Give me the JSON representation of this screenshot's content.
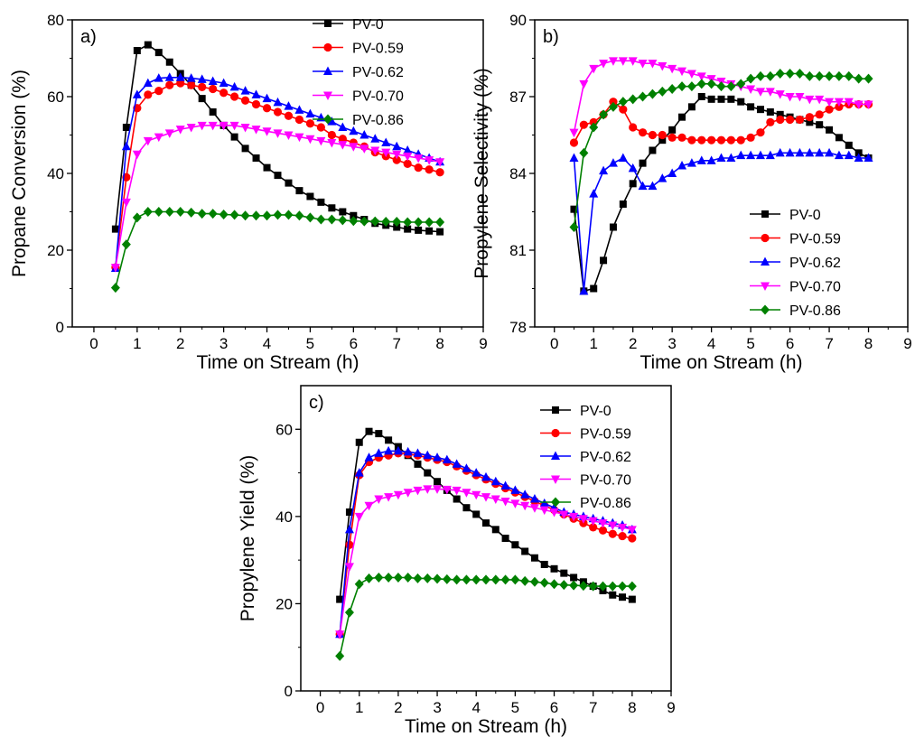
{
  "colors": {
    "PV-0": "#000000",
    "PV-0.59": "#ff0000",
    "PV-0.62": "#0000ff",
    "PV-0.70": "#ff00ff",
    "PV-0.86": "#008000"
  },
  "chart_data": [
    {
      "type": "line",
      "panel_label": "a)",
      "xlabel": "Time on Stream (h)",
      "ylabel": "Propane Conversion (%)",
      "xlim": [
        -0.5,
        9
      ],
      "ylim": [
        0,
        80
      ],
      "xticks": [
        0,
        1,
        2,
        3,
        4,
        5,
        6,
        7,
        8,
        9
      ],
      "yticks": [
        0,
        20,
        40,
        60,
        80
      ],
      "legend_position": "top-right",
      "x": [
        0.5,
        0.75,
        1.0,
        1.25,
        1.5,
        1.75,
        2.0,
        2.25,
        2.5,
        2.75,
        3.0,
        3.25,
        3.5,
        3.75,
        4.0,
        4.25,
        4.5,
        4.75,
        5.0,
        5.25,
        5.5,
        5.75,
        6.0,
        6.25,
        6.5,
        6.75,
        7.0,
        7.25,
        7.5,
        7.75,
        8.0
      ],
      "series": [
        {
          "name": "PV-0",
          "marker": "square",
          "values": [
            25.5,
            52,
            72,
            73.5,
            71.5,
            69,
            66,
            63,
            59.5,
            56,
            52.5,
            49.5,
            46.5,
            44,
            41.5,
            39.5,
            37.5,
            35.5,
            34,
            32.5,
            31,
            30,
            29,
            28,
            27,
            26.5,
            26,
            25.5,
            25.2,
            25,
            24.8
          ]
        },
        {
          "name": "PV-0.59",
          "marker": "circle",
          "values": [
            15.5,
            39,
            57,
            60.5,
            61.5,
            63,
            63.5,
            63,
            62.5,
            62,
            61,
            60,
            59,
            58,
            57,
            56,
            55,
            54,
            53,
            52,
            50,
            49,
            48,
            47,
            45.5,
            44.5,
            43.5,
            42.5,
            41.5,
            41,
            40.3
          ]
        },
        {
          "name": "PV-0.62",
          "marker": "triangle-up",
          "values": [
            15.3,
            47,
            60.5,
            63.5,
            64.8,
            65,
            65,
            64.8,
            64.5,
            64,
            63.5,
            62.5,
            61.5,
            60.5,
            59.5,
            58.5,
            57.5,
            56.5,
            55.5,
            54.5,
            53.5,
            52,
            51,
            50,
            49,
            48,
            47,
            46,
            45,
            44,
            43
          ]
        },
        {
          "name": "PV-0.70",
          "marker": "triangle-down",
          "values": [
            15.5,
            32.5,
            45,
            48.5,
            49.5,
            50.5,
            51.5,
            52,
            52.5,
            52.5,
            52.5,
            52.5,
            52,
            51.5,
            51,
            50.5,
            50,
            49.5,
            49,
            48.5,
            48,
            47.5,
            47,
            46.5,
            46,
            45.5,
            45,
            44.5,
            44,
            43.5,
            43
          ]
        },
        {
          "name": "PV-0.86",
          "marker": "diamond",
          "values": [
            10.2,
            21.5,
            28.5,
            30,
            30,
            30,
            30,
            29.8,
            29.5,
            29.5,
            29.3,
            29.2,
            29,
            29,
            29,
            29.2,
            29.2,
            29,
            28.5,
            28,
            28,
            27.8,
            27.6,
            27.5,
            27.5,
            27.4,
            27.4,
            27.3,
            27.3,
            27.3,
            27.3
          ]
        }
      ]
    },
    {
      "type": "line",
      "panel_label": "b)",
      "xlabel": "Time on Stream (h)",
      "ylabel": "Propylene Selectivity (%)",
      "xlim": [
        -0.5,
        9
      ],
      "ylim": [
        78,
        90
      ],
      "xticks": [
        0,
        1,
        2,
        3,
        4,
        5,
        6,
        7,
        8,
        9
      ],
      "yticks": [
        78,
        81,
        84,
        87,
        90
      ],
      "legend_position": "bottom-right",
      "x": [
        0.5,
        0.75,
        1.0,
        1.25,
        1.5,
        1.75,
        2.0,
        2.25,
        2.5,
        2.75,
        3.0,
        3.25,
        3.5,
        3.75,
        4.0,
        4.25,
        4.5,
        4.75,
        5.0,
        5.25,
        5.5,
        5.75,
        6.0,
        6.25,
        6.5,
        6.75,
        7.0,
        7.25,
        7.5,
        7.75,
        8.0
      ],
      "series": [
        {
          "name": "PV-0",
          "marker": "square",
          "values": [
            82.6,
            79.4,
            79.5,
            80.6,
            81.9,
            82.8,
            83.6,
            84.4,
            84.9,
            85.3,
            85.7,
            86.2,
            86.6,
            87.0,
            86.9,
            86.9,
            86.9,
            86.8,
            86.6,
            86.5,
            86.4,
            86.3,
            86.2,
            86.1,
            86.0,
            85.9,
            85.7,
            85.4,
            85.1,
            84.8,
            84.6
          ]
        },
        {
          "name": "PV-0.59",
          "marker": "circle",
          "values": [
            85.2,
            85.9,
            86.0,
            86.3,
            86.8,
            86.5,
            85.8,
            85.6,
            85.5,
            85.5,
            85.4,
            85.4,
            85.3,
            85.3,
            85.3,
            85.3,
            85.3,
            85.3,
            85.4,
            85.6,
            86.0,
            86.1,
            86.1,
            86.1,
            86.2,
            86.3,
            86.5,
            86.6,
            86.7,
            86.7,
            86.7
          ]
        },
        {
          "name": "PV-0.62",
          "marker": "triangle-up",
          "values": [
            84.6,
            79.4,
            83.2,
            84.1,
            84.4,
            84.6,
            84.2,
            83.5,
            83.5,
            83.8,
            84.0,
            84.3,
            84.4,
            84.5,
            84.5,
            84.6,
            84.6,
            84.7,
            84.7,
            84.7,
            84.7,
            84.8,
            84.8,
            84.8,
            84.8,
            84.8,
            84.8,
            84.7,
            84.7,
            84.6,
            84.6
          ]
        },
        {
          "name": "PV-0.70",
          "marker": "triangle-down",
          "values": [
            85.6,
            87.5,
            88.1,
            88.3,
            88.4,
            88.4,
            88.4,
            88.3,
            88.3,
            88.2,
            88.1,
            88.0,
            87.9,
            87.8,
            87.7,
            87.6,
            87.5,
            87.4,
            87.3,
            87.2,
            87.2,
            87.1,
            87.0,
            87.0,
            86.9,
            86.9,
            86.8,
            86.8,
            86.8,
            86.7,
            86.7
          ]
        },
        {
          "name": "PV-0.86",
          "marker": "diamond",
          "values": [
            81.9,
            84.8,
            85.8,
            86.3,
            86.6,
            86.8,
            86.9,
            87.0,
            87.1,
            87.2,
            87.3,
            87.4,
            87.4,
            87.5,
            87.5,
            87.4,
            87.4,
            87.5,
            87.7,
            87.8,
            87.8,
            87.9,
            87.9,
            87.9,
            87.8,
            87.8,
            87.8,
            87.8,
            87.8,
            87.7,
            87.7
          ]
        }
      ]
    },
    {
      "type": "line",
      "panel_label": "c)",
      "xlabel": "Time on Stream (h)",
      "ylabel": "Propylene Yield (%)",
      "xlim": [
        -0.5,
        9
      ],
      "ylim": [
        0,
        70
      ],
      "xticks": [
        0,
        1,
        2,
        3,
        4,
        5,
        6,
        7,
        8,
        9
      ],
      "yticks": [
        0,
        20,
        40,
        60
      ],
      "legend_position": "top-right",
      "x": [
        0.5,
        0.75,
        1.0,
        1.25,
        1.5,
        1.75,
        2.0,
        2.25,
        2.5,
        2.75,
        3.0,
        3.25,
        3.5,
        3.75,
        4.0,
        4.25,
        4.5,
        4.75,
        5.0,
        5.25,
        5.5,
        5.75,
        6.0,
        6.25,
        6.5,
        6.75,
        7.0,
        7.25,
        7.5,
        7.75,
        8.0
      ],
      "series": [
        {
          "name": "PV-0",
          "marker": "square",
          "values": [
            21,
            41,
            57,
            59.5,
            59,
            57.5,
            56,
            54,
            52,
            50,
            48,
            46,
            44,
            42,
            40.5,
            38.5,
            37,
            35,
            33.5,
            32,
            30.5,
            29,
            28,
            27,
            26,
            25,
            24,
            23,
            22,
            21.5,
            21
          ]
        },
        {
          "name": "PV-0.59",
          "marker": "circle",
          "values": [
            13,
            33.5,
            49.5,
            52.5,
            53.5,
            54,
            54.5,
            54.3,
            54,
            53.5,
            53,
            52.5,
            51.5,
            50.5,
            49.5,
            48.5,
            47.5,
            46.5,
            45.5,
            44.5,
            43.5,
            42.5,
            41.5,
            40.5,
            39.5,
            38.5,
            37.5,
            36.8,
            36,
            35.5,
            35
          ]
        },
        {
          "name": "PV-0.62",
          "marker": "triangle-up",
          "values": [
            13,
            37,
            50,
            53.5,
            54.5,
            55,
            55,
            54.8,
            54.5,
            54,
            53.5,
            53,
            52,
            51,
            50,
            49,
            48,
            47,
            46,
            45,
            44,
            43,
            42,
            41,
            40.5,
            40,
            39.5,
            39,
            38.5,
            38,
            37
          ]
        },
        {
          "name": "PV-0.70",
          "marker": "triangle-down",
          "values": [
            13,
            28.5,
            40,
            42.5,
            44,
            44.5,
            45,
            45.5,
            46,
            46.3,
            46.3,
            46.2,
            46,
            45.5,
            45,
            44.5,
            44,
            43.5,
            43,
            42.5,
            42,
            41.5,
            41,
            40.5,
            40,
            39.5,
            39,
            38.5,
            38,
            37.5,
            37
          ]
        },
        {
          "name": "PV-0.86",
          "marker": "diamond",
          "values": [
            8,
            18,
            24.5,
            25.8,
            26,
            26,
            26,
            26,
            25.8,
            25.8,
            25.7,
            25.6,
            25.5,
            25.5,
            25.5,
            25.5,
            25.5,
            25.5,
            25.5,
            25.2,
            25,
            24.8,
            24.5,
            24.3,
            24.2,
            24.1,
            24,
            24,
            24,
            24,
            24
          ]
        }
      ]
    }
  ]
}
